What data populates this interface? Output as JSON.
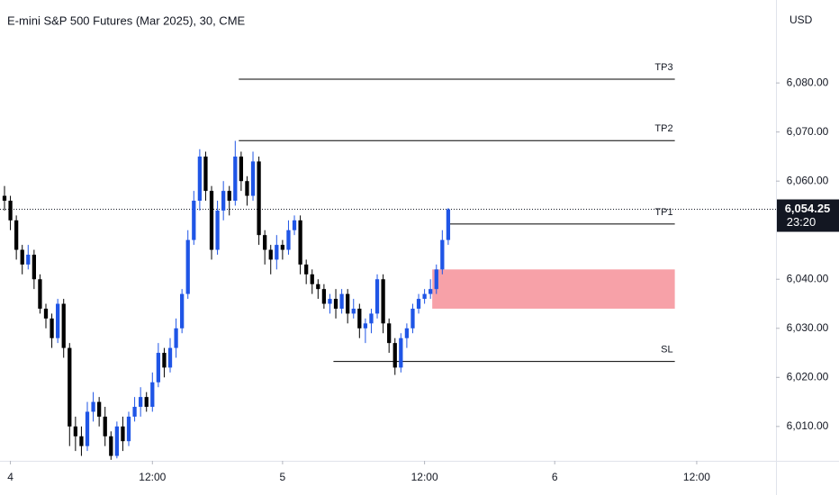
{
  "chart_data": {
    "type": "candlestick",
    "title": "E-mini S&P 500 Futures (Mar 2025), 30, CME",
    "currency": "USD",
    "up_color": "#1f55e6",
    "down_color": "#000000",
    "x": [
      0,
      1,
      2,
      3,
      4,
      5,
      6,
      7,
      8,
      9,
      10,
      11,
      12,
      13,
      14,
      15,
      16,
      17,
      18,
      19,
      20,
      21,
      22,
      23,
      24,
      25,
      26,
      27,
      28,
      29,
      30,
      31,
      32,
      33,
      34,
      35,
      36,
      37,
      38,
      39,
      40,
      41,
      42,
      43,
      44,
      45,
      46,
      47,
      48,
      49,
      50,
      51,
      52,
      53,
      54,
      55,
      56,
      57,
      58,
      59,
      60,
      61,
      62,
      63,
      64,
      65,
      66,
      67,
      68,
      69,
      70,
      71,
      72,
      73,
      74,
      75
    ],
    "open": [
      6057,
      6056,
      6052,
      6046,
      6043,
      6045,
      6040,
      6034,
      6032,
      6028,
      6035,
      6026,
      6010,
      6008,
      6006,
      6013,
      6015,
      6012,
      6008,
      6004,
      6010,
      6007,
      6012,
      6014,
      6016,
      6014,
      6019,
      6025,
      6022,
      6026,
      6030,
      6037,
      6048,
      6056,
      6065,
      6058,
      6046,
      6054,
      6058,
      6056,
      6065,
      6060,
      6057,
      6064,
      6049,
      6046,
      6044,
      6047,
      6046,
      6050,
      6052,
      6043,
      6041,
      6039,
      6038,
      6035,
      6036,
      6034,
      6037,
      6033,
      6034,
      6030,
      6031,
      6033,
      6040,
      6031,
      6027,
      6022,
      6028,
      6030,
      6034,
      6036,
      6037,
      6038,
      6042,
      6048
    ],
    "high": [
      6059,
      6057,
      6053,
      6047,
      6047,
      6046,
      6041,
      6035,
      6033,
      6036,
      6036,
      6027,
      6012,
      6010,
      6015,
      6017,
      6016,
      6014,
      6009,
      6011,
      6012,
      6013,
      6016,
      6018,
      6017,
      6021,
      6027,
      6026,
      6028,
      6032,
      6038,
      6050,
      6058,
      6066.5,
      6066,
      6059,
      6056,
      6060,
      6059,
      6068.2,
      6066,
      6061,
      6066,
      6065,
      6050,
      6047,
      6049,
      6048,
      6052,
      6053,
      6053,
      6044,
      6042,
      6040,
      6039,
      6037,
      6038,
      6038,
      6038,
      6036,
      6035,
      6032,
      6034,
      6041,
      6041,
      6032,
      6028,
      6029,
      6031,
      6035,
      6037,
      6038,
      6040,
      6043,
      6050,
      6054.5
    ],
    "low": [
      6054,
      6050,
      6044,
      6041,
      6042,
      6038,
      6033,
      6030,
      6026,
      6027,
      6024,
      6006,
      6005,
      6004,
      6005,
      6011,
      6010,
      6006,
      6003.2,
      6003.5,
      6005,
      6006,
      6011,
      6012,
      6013,
      6013,
      6018,
      6020,
      6021,
      6024,
      6029,
      6036,
      6047,
      6054,
      6056,
      6044,
      6045,
      6052,
      6053,
      6055,
      6058,
      6055,
      6056,
      6047,
      6043,
      6041,
      6042,
      6044,
      6045,
      6049,
      6041,
      6039,
      6037,
      6036,
      6034,
      6033,
      6032,
      6033,
      6031,
      6032,
      6028,
      6027,
      6029,
      6032,
      6029,
      6025,
      6020.5,
      6021,
      6026,
      6029,
      6033,
      6035,
      6036,
      6037,
      6041,
      6047
    ],
    "close": [
      6056,
      6052,
      6046,
      6043,
      6045,
      6040,
      6034,
      6032,
      6028,
      6035,
      6026,
      6010,
      6008,
      6006,
      6013,
      6015,
      6012,
      6008,
      6004,
      6010,
      6007,
      6012,
      6014,
      6016,
      6014,
      6019,
      6025,
      6022,
      6026,
      6030,
      6037,
      6048,
      6056,
      6065,
      6058,
      6046,
      6054,
      6058,
      6056,
      6065,
      6060,
      6057,
      6064,
      6049,
      6046,
      6044,
      6047,
      6046,
      6050,
      6052,
      6043,
      6041,
      6039,
      6038,
      6035,
      6036,
      6034,
      6037,
      6033,
      6034,
      6030,
      6031,
      6033,
      6040,
      6031,
      6027,
      6022,
      6028,
      6030,
      6034,
      6036,
      6037,
      6038,
      6042,
      6048,
      6054.25
    ],
    "xlim": [
      -0.76,
      130.4
    ],
    "xticks": [
      {
        "value": 1,
        "label": "4"
      },
      {
        "value": 25,
        "label": "12:00"
      },
      {
        "value": 47,
        "label": "5"
      },
      {
        "value": 71,
        "label": "12:00"
      },
      {
        "value": 93,
        "label": "6"
      },
      {
        "value": 117,
        "label": "12:00"
      }
    ],
    "ylim": [
      6003,
      6096.9
    ],
    "yticks": [
      {
        "value": 6010,
        "label": "6,010.00"
      },
      {
        "value": 6020,
        "label": "6,020.00"
      },
      {
        "value": 6030,
        "label": "6,030.00"
      },
      {
        "value": 6040,
        "label": "6,040.00"
      },
      {
        "value": 6060,
        "label": "6,060.00"
      },
      {
        "value": 6070,
        "label": "6,070.00"
      },
      {
        "value": 6080,
        "label": "6,080.00"
      }
    ],
    "last_price": {
      "value": 6054.25,
      "label": "6,054.25"
    },
    "countdown": "23:20",
    "levels": [
      {
        "label": "TP3",
        "value": 6080.75,
        "from": 39.6,
        "to": 113.3
      },
      {
        "label": "TP2",
        "value": 6068.25,
        "from": 39.6,
        "to": 113.3
      },
      {
        "label": "TP1",
        "value": 6051.25,
        "from": 75.3,
        "to": 113.3
      },
      {
        "label": "SL",
        "value": 6023.25,
        "from": 55.6,
        "to": 113.3
      }
    ],
    "zone": {
      "low": 6034,
      "high": 6042,
      "from": 72.3,
      "to": 113.3,
      "color": "#f7a1a8"
    }
  }
}
